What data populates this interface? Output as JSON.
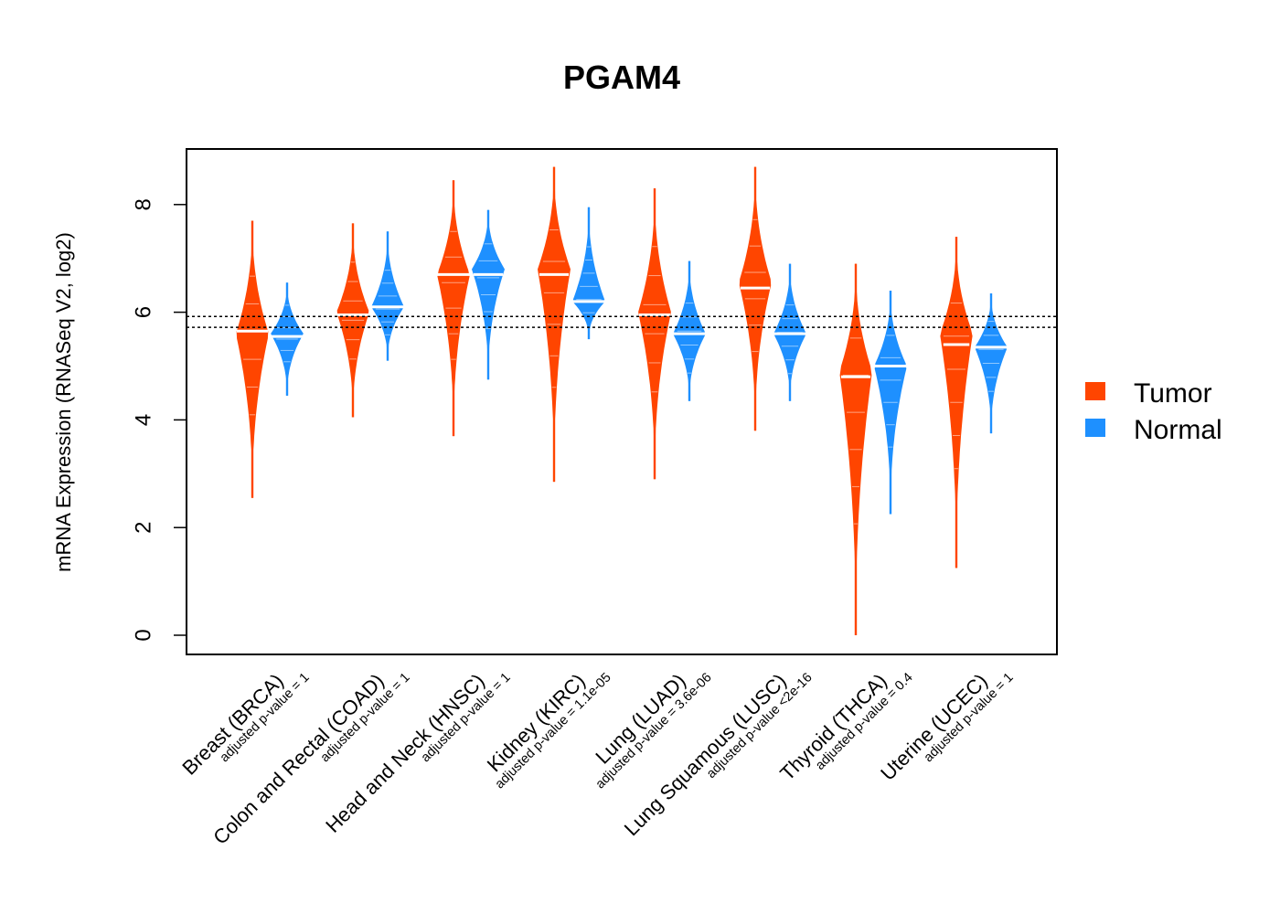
{
  "title": "PGAM4",
  "chart_data": {
    "type": "violin",
    "title": "PGAM4",
    "ylabel": "mRNA Expression (RNASeq V2, log2)",
    "ylim": [
      -0.35,
      9.0
    ],
    "yticks": [
      0,
      2,
      4,
      6,
      8
    ],
    "reference_lines": [
      5.72,
      5.92
    ],
    "colors": {
      "Tumor": "#ff4500",
      "Normal": "#1e90ff"
    },
    "legend": {
      "position": "right",
      "entries": [
        "Tumor",
        "Normal"
      ]
    },
    "categories": [
      "Breast (BRCA)",
      "Colon and Rectal (COAD)",
      "Head and Neck (HNSC)",
      "Kidney (KIRC)",
      "Lung (LUAD)",
      "Lung Squamous (LUSC)",
      "Thyroid (THCA)",
      "Uterine (UCEC)"
    ],
    "pvalue_labels": [
      "adjusted p-value = 1",
      "adjusted p-value = 1",
      "adjusted p-value = 1",
      "adjusted p-value = 1.1e-05",
      "adjusted p-value = 3.6e-06",
      "adjusted p-value <2e-16",
      "adjusted p-value = 0.4",
      "adjusted p-value = 1"
    ],
    "series": [
      {
        "name": "Tumor",
        "distributions": [
          {
            "min": 2.55,
            "max": 7.7,
            "median": 5.65,
            "peak": 5.6
          },
          {
            "min": 4.05,
            "max": 7.65,
            "median": 5.95,
            "peak": 6.0
          },
          {
            "min": 3.7,
            "max": 8.45,
            "median": 6.7,
            "peak": 6.7
          },
          {
            "min": 2.85,
            "max": 8.7,
            "median": 6.7,
            "peak": 6.8
          },
          {
            "min": 2.9,
            "max": 8.3,
            "median": 5.95,
            "peak": 6.0
          },
          {
            "min": 3.8,
            "max": 8.7,
            "median": 6.45,
            "peak": 6.55
          },
          {
            "min": 0.0,
            "max": 6.9,
            "median": 4.8,
            "peak": 4.9
          },
          {
            "min": 1.25,
            "max": 7.4,
            "median": 5.4,
            "peak": 5.6
          }
        ]
      },
      {
        "name": "Normal",
        "distributions": [
          {
            "min": 4.45,
            "max": 6.55,
            "median": 5.55,
            "peak": 5.6
          },
          {
            "min": 5.1,
            "max": 7.5,
            "median": 6.1,
            "peak": 6.1
          },
          {
            "min": 4.75,
            "max": 7.9,
            "median": 6.7,
            "peak": 6.8
          },
          {
            "min": 5.5,
            "max": 7.95,
            "median": 6.2,
            "peak": 6.2
          },
          {
            "min": 4.35,
            "max": 6.95,
            "median": 5.6,
            "peak": 5.6
          },
          {
            "min": 4.35,
            "max": 6.9,
            "median": 5.6,
            "peak": 5.6
          },
          {
            "min": 2.25,
            "max": 6.4,
            "median": 5.0,
            "peak": 5.0
          },
          {
            "min": 3.75,
            "max": 6.35,
            "median": 5.35,
            "peak": 5.35
          }
        ]
      }
    ]
  }
}
